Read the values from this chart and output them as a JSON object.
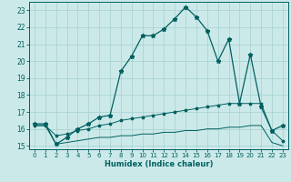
{
  "title": "",
  "xlabel": "Humidex (Indice chaleur)",
  "ylabel": "",
  "bg_color": "#cce9e9",
  "grid_color": "#aad4d4",
  "line_color": "#006060",
  "xlim": [
    -0.5,
    23.5
  ],
  "ylim": [
    14.8,
    23.5
  ],
  "yticks": [
    15,
    16,
    17,
    18,
    19,
    20,
    21,
    22,
    23
  ],
  "xticks": [
    0,
    1,
    2,
    3,
    4,
    5,
    6,
    7,
    8,
    9,
    10,
    11,
    12,
    13,
    14,
    15,
    16,
    17,
    18,
    19,
    20,
    21,
    22,
    23
  ],
  "line1_x": [
    0,
    1,
    2,
    3,
    4,
    5,
    6,
    7,
    8,
    9,
    10,
    11,
    12,
    13,
    14,
    15,
    16,
    17,
    18,
    19,
    20,
    21,
    22,
    23
  ],
  "line1_y": [
    16.3,
    16.3,
    15.1,
    15.5,
    16.0,
    16.3,
    16.7,
    16.8,
    19.4,
    20.3,
    21.5,
    21.5,
    21.9,
    22.5,
    23.2,
    22.6,
    21.8,
    20.0,
    21.3,
    17.5,
    20.4,
    17.3,
    15.9,
    16.2
  ],
  "line2_x": [
    0,
    1,
    2,
    3,
    4,
    5,
    6,
    7,
    8,
    9,
    10,
    11,
    12,
    13,
    14,
    15,
    16,
    17,
    18,
    19,
    20,
    21,
    22,
    23
  ],
  "line2_y": [
    16.2,
    16.2,
    15.6,
    15.7,
    15.9,
    16.0,
    16.2,
    16.3,
    16.5,
    16.6,
    16.7,
    16.8,
    16.9,
    17.0,
    17.1,
    17.2,
    17.3,
    17.4,
    17.5,
    17.5,
    17.5,
    17.5,
    15.9,
    15.3
  ],
  "line3_x": [
    0,
    1,
    2,
    3,
    4,
    5,
    6,
    7,
    8,
    9,
    10,
    11,
    12,
    13,
    14,
    15,
    16,
    17,
    18,
    19,
    20,
    21,
    22,
    23
  ],
  "line3_y": [
    16.2,
    16.2,
    15.1,
    15.2,
    15.3,
    15.4,
    15.5,
    15.5,
    15.6,
    15.6,
    15.7,
    15.7,
    15.8,
    15.8,
    15.9,
    15.9,
    16.0,
    16.0,
    16.1,
    16.1,
    16.2,
    16.2,
    15.2,
    15.0
  ]
}
